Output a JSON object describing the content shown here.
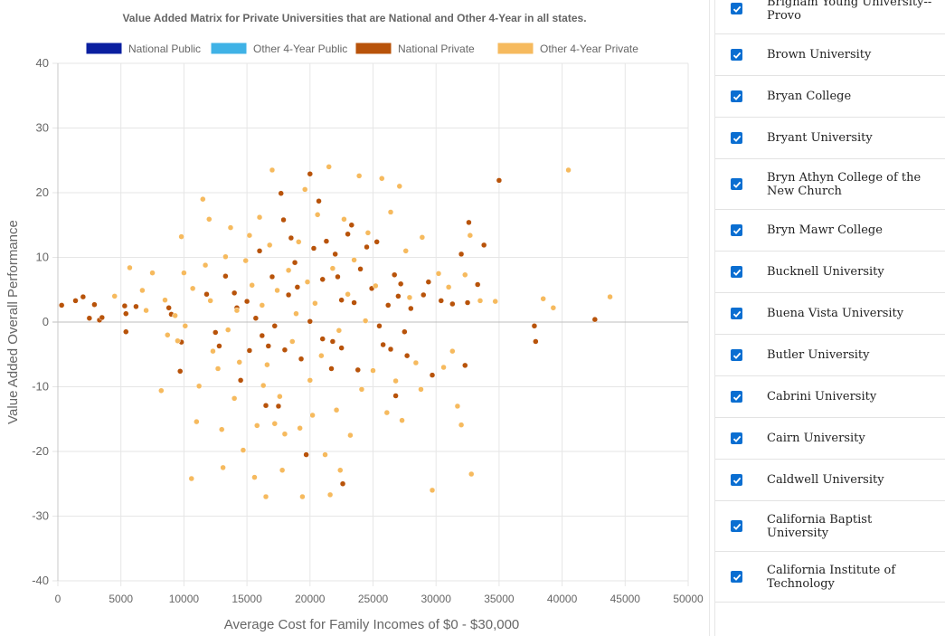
{
  "chart_data": {
    "type": "scatter",
    "title": "Value Added Matrix for Private Universities that are National and Other 4-Year in all states.",
    "xlabel": "Average Cost for Family Incomes of  $0 - $30,000",
    "ylabel": "Value Added Overall Performance",
    "xlim": [
      0,
      50000
    ],
    "ylim": [
      -40,
      40
    ],
    "xticks": [
      0,
      5000,
      10000,
      15000,
      20000,
      25000,
      30000,
      35000,
      40000,
      45000,
      50000
    ],
    "yticks": [
      -40,
      -30,
      -20,
      -10,
      0,
      10,
      20,
      30,
      40
    ],
    "grid": true,
    "legend_position": "top",
    "legend": [
      {
        "name": "National Public",
        "color": "#0a1fa0"
      },
      {
        "name": "Other 4-Year Public",
        "color": "#3fb2e6"
      },
      {
        "name": "National Private",
        "color": "#b8530a"
      },
      {
        "name": "Other 4-Year Private",
        "color": "#f6ba5e"
      }
    ],
    "series": [
      {
        "name": "National Private",
        "color": "#b8530a",
        "points": [
          [
            300,
            2.6
          ],
          [
            1400,
            3.3
          ],
          [
            2000,
            3.9
          ],
          [
            2500,
            0.6
          ],
          [
            2900,
            2.7
          ],
          [
            3300,
            0.3
          ],
          [
            3500,
            0.7
          ],
          [
            5300,
            2.5
          ],
          [
            5400,
            1.3
          ],
          [
            5400,
            -1.5
          ],
          [
            6200,
            2.4
          ],
          [
            8800,
            2.2
          ],
          [
            9000,
            1.2
          ],
          [
            9700,
            -7.6
          ],
          [
            9800,
            -3.1
          ],
          [
            11800,
            4.3
          ],
          [
            12500,
            -1.6
          ],
          [
            12800,
            -3.7
          ],
          [
            13300,
            7.1
          ],
          [
            14000,
            4.5
          ],
          [
            14200,
            2.2
          ],
          [
            14500,
            -9.0
          ],
          [
            15000,
            3.2
          ],
          [
            15200,
            -4.4
          ],
          [
            15700,
            0.6
          ],
          [
            16000,
            11.0
          ],
          [
            16200,
            -2.1
          ],
          [
            16500,
            -12.9
          ],
          [
            16700,
            -3.7
          ],
          [
            17000,
            7.0
          ],
          [
            17200,
            -0.6
          ],
          [
            17500,
            -13.0
          ],
          [
            17700,
            19.9
          ],
          [
            17900,
            15.8
          ],
          [
            18000,
            -4.3
          ],
          [
            18300,
            4.2
          ],
          [
            18500,
            13.0
          ],
          [
            18800,
            9.2
          ],
          [
            19000,
            5.4
          ],
          [
            19300,
            -5.7
          ],
          [
            19700,
            -20.5
          ],
          [
            20000,
            0.1
          ],
          [
            20000,
            22.9
          ],
          [
            20300,
            11.4
          ],
          [
            20700,
            18.7
          ],
          [
            21000,
            -2.6
          ],
          [
            21000,
            6.6
          ],
          [
            21300,
            12.5
          ],
          [
            21700,
            -7.2
          ],
          [
            21800,
            -3.0
          ],
          [
            22000,
            10.5
          ],
          [
            22200,
            7.0
          ],
          [
            22500,
            -4.0
          ],
          [
            22500,
            3.4
          ],
          [
            22600,
            -25.0
          ],
          [
            23000,
            13.6
          ],
          [
            23300,
            15.0
          ],
          [
            23500,
            3.0
          ],
          [
            23800,
            -7.4
          ],
          [
            24000,
            8.2
          ],
          [
            24500,
            11.6
          ],
          [
            24900,
            5.2
          ],
          [
            25300,
            12.4
          ],
          [
            25500,
            -0.6
          ],
          [
            25800,
            -3.5
          ],
          [
            26200,
            2.6
          ],
          [
            26400,
            -4.2
          ],
          [
            26700,
            7.3
          ],
          [
            27000,
            4.0
          ],
          [
            26800,
            -11.4
          ],
          [
            27200,
            5.9
          ],
          [
            27500,
            -1.5
          ],
          [
            27700,
            -5.2
          ],
          [
            28000,
            2.1
          ],
          [
            29000,
            4.2
          ],
          [
            29400,
            6.2
          ],
          [
            29700,
            -8.2
          ],
          [
            30400,
            3.3
          ],
          [
            31300,
            2.8
          ],
          [
            32000,
            10.5
          ],
          [
            32300,
            -6.7
          ],
          [
            32500,
            3.0
          ],
          [
            32600,
            15.4
          ],
          [
            33300,
            5.8
          ],
          [
            33800,
            11.9
          ],
          [
            35000,
            21.9
          ],
          [
            37800,
            -0.6
          ],
          [
            37900,
            -3.0
          ],
          [
            42600,
            0.4
          ]
        ]
      },
      {
        "name": "Other 4-Year Private",
        "color": "#f6ba5e",
        "points": [
          [
            4500,
            4.0
          ],
          [
            5700,
            8.4
          ],
          [
            6700,
            4.9
          ],
          [
            7000,
            1.8
          ],
          [
            7500,
            7.6
          ],
          [
            8200,
            -10.6
          ],
          [
            8500,
            3.4
          ],
          [
            8700,
            -2.0
          ],
          [
            9300,
            1.0
          ],
          [
            9500,
            -2.9
          ],
          [
            9800,
            13.2
          ],
          [
            10000,
            7.6
          ],
          [
            10100,
            -0.6
          ],
          [
            10600,
            -24.2
          ],
          [
            10700,
            5.2
          ],
          [
            11000,
            -15.4
          ],
          [
            11200,
            -9.9
          ],
          [
            11500,
            19.0
          ],
          [
            11700,
            8.8
          ],
          [
            12000,
            15.9
          ],
          [
            12100,
            3.3
          ],
          [
            12300,
            -4.5
          ],
          [
            12700,
            -7.2
          ],
          [
            13000,
            -16.6
          ],
          [
            13100,
            -22.5
          ],
          [
            13300,
            10.1
          ],
          [
            13500,
            -1.2
          ],
          [
            13700,
            14.6
          ],
          [
            14000,
            -11.8
          ],
          [
            14200,
            1.8
          ],
          [
            14400,
            -6.2
          ],
          [
            14700,
            -19.8
          ],
          [
            14900,
            9.5
          ],
          [
            15200,
            13.4
          ],
          [
            15400,
            5.7
          ],
          [
            15600,
            -24.0
          ],
          [
            15800,
            -16.0
          ],
          [
            16000,
            16.2
          ],
          [
            16200,
            2.6
          ],
          [
            16300,
            -9.8
          ],
          [
            16500,
            -27.0
          ],
          [
            16600,
            -6.6
          ],
          [
            16800,
            11.9
          ],
          [
            17000,
            23.5
          ],
          [
            17200,
            -15.7
          ],
          [
            17400,
            4.9
          ],
          [
            17600,
            -11.5
          ],
          [
            17800,
            -22.9
          ],
          [
            18000,
            -17.3
          ],
          [
            18300,
            8.0
          ],
          [
            18600,
            -3.0
          ],
          [
            18900,
            1.3
          ],
          [
            19100,
            12.4
          ],
          [
            19200,
            -16.4
          ],
          [
            19400,
            -27.0
          ],
          [
            19600,
            20.5
          ],
          [
            19800,
            6.2
          ],
          [
            20000,
            -9.0
          ],
          [
            20200,
            -14.4
          ],
          [
            20400,
            2.9
          ],
          [
            20600,
            16.6
          ],
          [
            20900,
            -5.2
          ],
          [
            21200,
            -20.5
          ],
          [
            21500,
            24.0
          ],
          [
            21600,
            -26.7
          ],
          [
            21800,
            8.3
          ],
          [
            22100,
            -13.6
          ],
          [
            22300,
            -1.3
          ],
          [
            22400,
            -22.9
          ],
          [
            22700,
            15.9
          ],
          [
            23000,
            4.3
          ],
          [
            23200,
            -17.5
          ],
          [
            23500,
            9.6
          ],
          [
            23900,
            22.6
          ],
          [
            24100,
            -10.4
          ],
          [
            24400,
            0.2
          ],
          [
            24600,
            13.8
          ],
          [
            25000,
            -7.5
          ],
          [
            25200,
            5.6
          ],
          [
            25700,
            22.2
          ],
          [
            26100,
            -14.0
          ],
          [
            26400,
            17.0
          ],
          [
            26800,
            -9.1
          ],
          [
            27100,
            21.0
          ],
          [
            27300,
            -15.2
          ],
          [
            27600,
            11.0
          ],
          [
            27900,
            3.8
          ],
          [
            28400,
            -6.3
          ],
          [
            28800,
            -10.4
          ],
          [
            28900,
            13.1
          ],
          [
            29700,
            -26.0
          ],
          [
            30200,
            7.5
          ],
          [
            30600,
            -7.0
          ],
          [
            31000,
            5.4
          ],
          [
            31300,
            -4.5
          ],
          [
            31700,
            -13.0
          ],
          [
            32000,
            -15.9
          ],
          [
            32300,
            7.3
          ],
          [
            32700,
            13.4
          ],
          [
            32800,
            -23.5
          ],
          [
            33500,
            3.3
          ],
          [
            34700,
            3.2
          ],
          [
            38500,
            3.6
          ],
          [
            39300,
            2.2
          ],
          [
            40500,
            23.5
          ],
          [
            43800,
            3.9
          ]
        ]
      }
    ]
  },
  "sidebar": {
    "items": [
      {
        "label": "Brigham Young University--Provo",
        "checked": true
      },
      {
        "label": "Brown University",
        "checked": true
      },
      {
        "label": "Bryan College",
        "checked": true
      },
      {
        "label": "Bryant University",
        "checked": true
      },
      {
        "label": "Bryn Athyn College of the New Church",
        "checked": true
      },
      {
        "label": "Bryn Mawr College",
        "checked": true
      },
      {
        "label": "Bucknell University",
        "checked": true
      },
      {
        "label": "Buena Vista University",
        "checked": true
      },
      {
        "label": "Butler University",
        "checked": true
      },
      {
        "label": "Cabrini University",
        "checked": true
      },
      {
        "label": "Cairn University",
        "checked": true
      },
      {
        "label": "Caldwell University",
        "checked": true
      },
      {
        "label": "California Baptist University",
        "checked": true
      },
      {
        "label": "California Institute of Technology",
        "checked": true
      }
    ]
  }
}
